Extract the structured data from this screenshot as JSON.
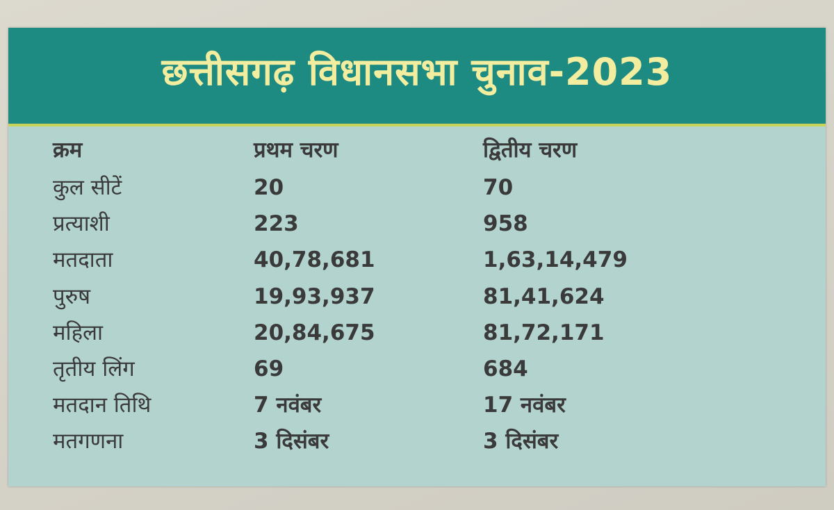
{
  "header": {
    "title": "छत्तीसगढ़ विधानसभा चुनाव-2023"
  },
  "table": {
    "columns": [
      "क्रम",
      "प्रथम चरण",
      "द्वितीय चरण"
    ],
    "rows": [
      [
        "कुल सीटें",
        "20",
        "70"
      ],
      [
        "प्रत्याशी",
        "223",
        "958"
      ],
      [
        "मतदाता",
        "40,78,681",
        "1,63,14,479"
      ],
      [
        "पुरुष",
        "19,93,937",
        "81,41,624"
      ],
      [
        "महिला",
        "20,84,675",
        "81,72,171"
      ],
      [
        "तृतीय लिंग",
        "69",
        "684"
      ],
      [
        "मतदान तिथि",
        "7 नवंबर",
        "17 नवंबर"
      ],
      [
        "मतगणना",
        "3 दिसंबर",
        "3 दिसंबर"
      ]
    ]
  }
}
